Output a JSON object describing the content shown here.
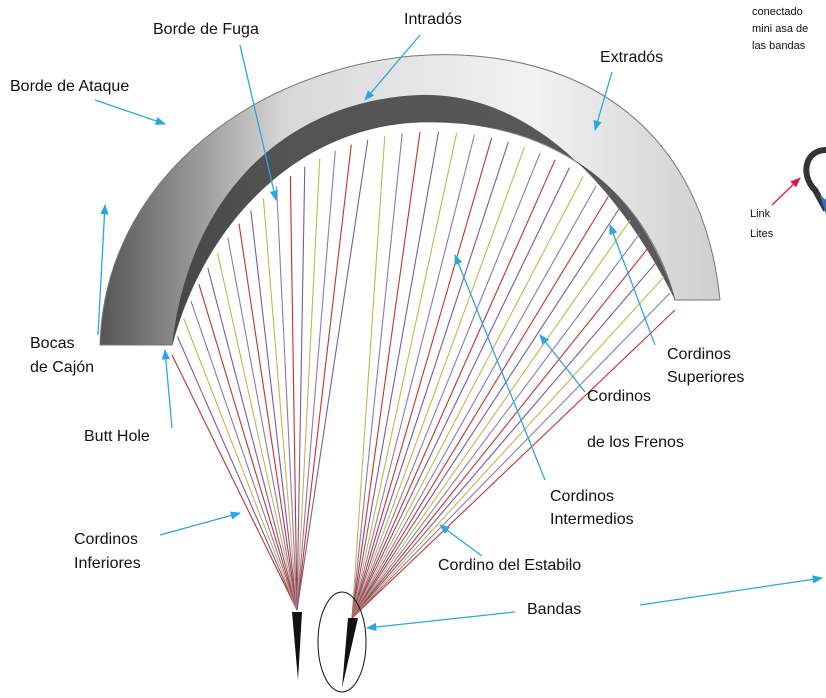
{
  "labels": [
    {
      "lines": [
        "Borde de Fuga"
      ]
    },
    {
      "lines": [
        "Intradós"
      ]
    },
    {
      "lines": [
        "Extradós"
      ]
    },
    {
      "lines": [
        "Borde de Ataque"
      ]
    },
    {
      "lines": [
        "conectado",
        "mini asa de",
        "las bandas"
      ]
    },
    {
      "lines": [
        "Link",
        "Lites"
      ]
    },
    {
      "lines": [
        "Bocas",
        "de Cajón"
      ]
    },
    {
      "lines": [
        "Butt Hole"
      ]
    },
    {
      "lines": [
        "Cordinos",
        "Superiores"
      ]
    },
    {
      "lines": [
        "Cordinos",
        "de los Frenos"
      ]
    },
    {
      "lines": [
        "Cordinos",
        "Intermedios"
      ]
    },
    {
      "lines": [
        "Cordinos",
        "Inferiores"
      ]
    },
    {
      "lines": [
        "Cordino del Estabilo"
      ]
    },
    {
      "lines": [
        "Bandas"
      ]
    }
  ]
}
